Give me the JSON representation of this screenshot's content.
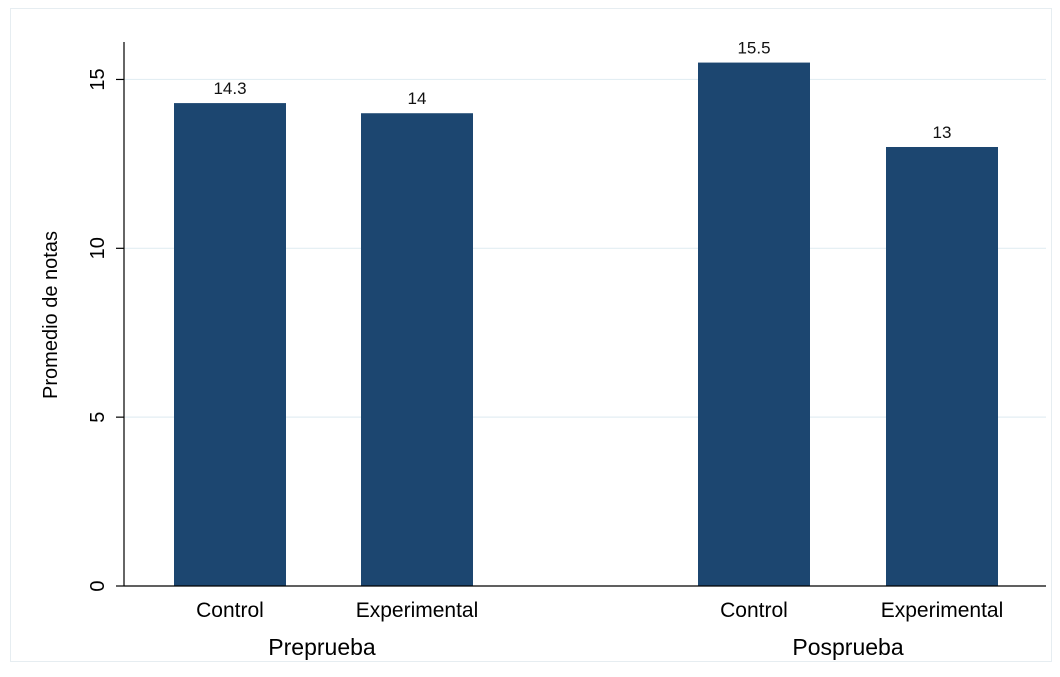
{
  "chart_data": {
    "type": "bar",
    "title": "",
    "xlabel": "",
    "ylabel": "Promedio de notas",
    "ylim": [
      0,
      16
    ],
    "yticks": [
      0,
      5,
      10,
      15
    ],
    "grid": true,
    "legend": "none",
    "bar_color": "#1c4670",
    "grid_color": "#e3eef3",
    "groups": [
      {
        "label": "Preprueba",
        "categories": [
          "Control",
          "Experimental"
        ],
        "values": [
          14.3,
          14
        ],
        "value_labels": [
          "14.3",
          "14"
        ]
      },
      {
        "label": "Posprueba",
        "categories": [
          "Control",
          "Experimental"
        ],
        "values": [
          15.5,
          13
        ],
        "value_labels": [
          "15.5",
          "13"
        ]
      }
    ]
  }
}
